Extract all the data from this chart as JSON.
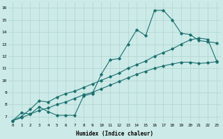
{
  "xlabel": "Humidex (Indice chaleur)",
  "bg_color": "#cceae7",
  "grid_color": "#b0d4d0",
  "line_color": "#1a7070",
  "xlim": [
    -0.5,
    23.5
  ],
  "ylim": [
    6.5,
    16.5
  ],
  "xticks": [
    0,
    1,
    2,
    3,
    4,
    5,
    6,
    7,
    8,
    9,
    10,
    11,
    12,
    13,
    14,
    15,
    16,
    17,
    18,
    19,
    20,
    21,
    22,
    23
  ],
  "yticks": [
    7,
    8,
    9,
    10,
    11,
    12,
    13,
    14,
    15,
    16
  ],
  "line1_x": [
    0,
    1,
    2,
    3,
    4,
    5,
    6,
    7,
    8,
    9,
    10,
    11,
    12,
    13,
    14,
    15,
    16,
    17,
    18,
    19,
    20,
    21,
    22,
    23
  ],
  "line1_y": [
    6.65,
    7.3,
    7.2,
    7.8,
    7.4,
    7.1,
    7.1,
    7.1,
    8.7,
    8.9,
    10.5,
    11.7,
    11.8,
    13.0,
    14.2,
    13.7,
    15.8,
    15.8,
    15.0,
    13.9,
    13.8,
    13.3,
    13.2,
    13.1
  ],
  "line2_x": [
    0,
    1,
    2,
    3,
    4,
    5,
    6,
    7,
    8,
    9,
    10,
    11,
    12,
    13,
    14,
    15,
    16,
    17,
    18,
    19,
    20,
    21,
    22,
    23
  ],
  "line2_y": [
    6.65,
    7.0,
    7.6,
    8.3,
    8.2,
    8.6,
    8.9,
    9.1,
    9.4,
    9.7,
    10.0,
    10.3,
    10.6,
    11.0,
    11.3,
    11.6,
    12.0,
    12.3,
    12.6,
    13.0,
    13.35,
    13.5,
    13.4,
    11.6
  ],
  "line3_x": [
    0,
    1,
    2,
    3,
    4,
    5,
    6,
    7,
    8,
    9,
    10,
    11,
    12,
    13,
    14,
    15,
    16,
    17,
    18,
    19,
    20,
    21,
    22,
    23
  ],
  "line3_y": [
    6.65,
    6.9,
    7.2,
    7.5,
    7.7,
    8.0,
    8.2,
    8.5,
    8.8,
    9.0,
    9.3,
    9.6,
    9.9,
    10.2,
    10.5,
    10.75,
    11.0,
    11.2,
    11.35,
    11.5,
    11.5,
    11.4,
    11.45,
    11.55
  ]
}
